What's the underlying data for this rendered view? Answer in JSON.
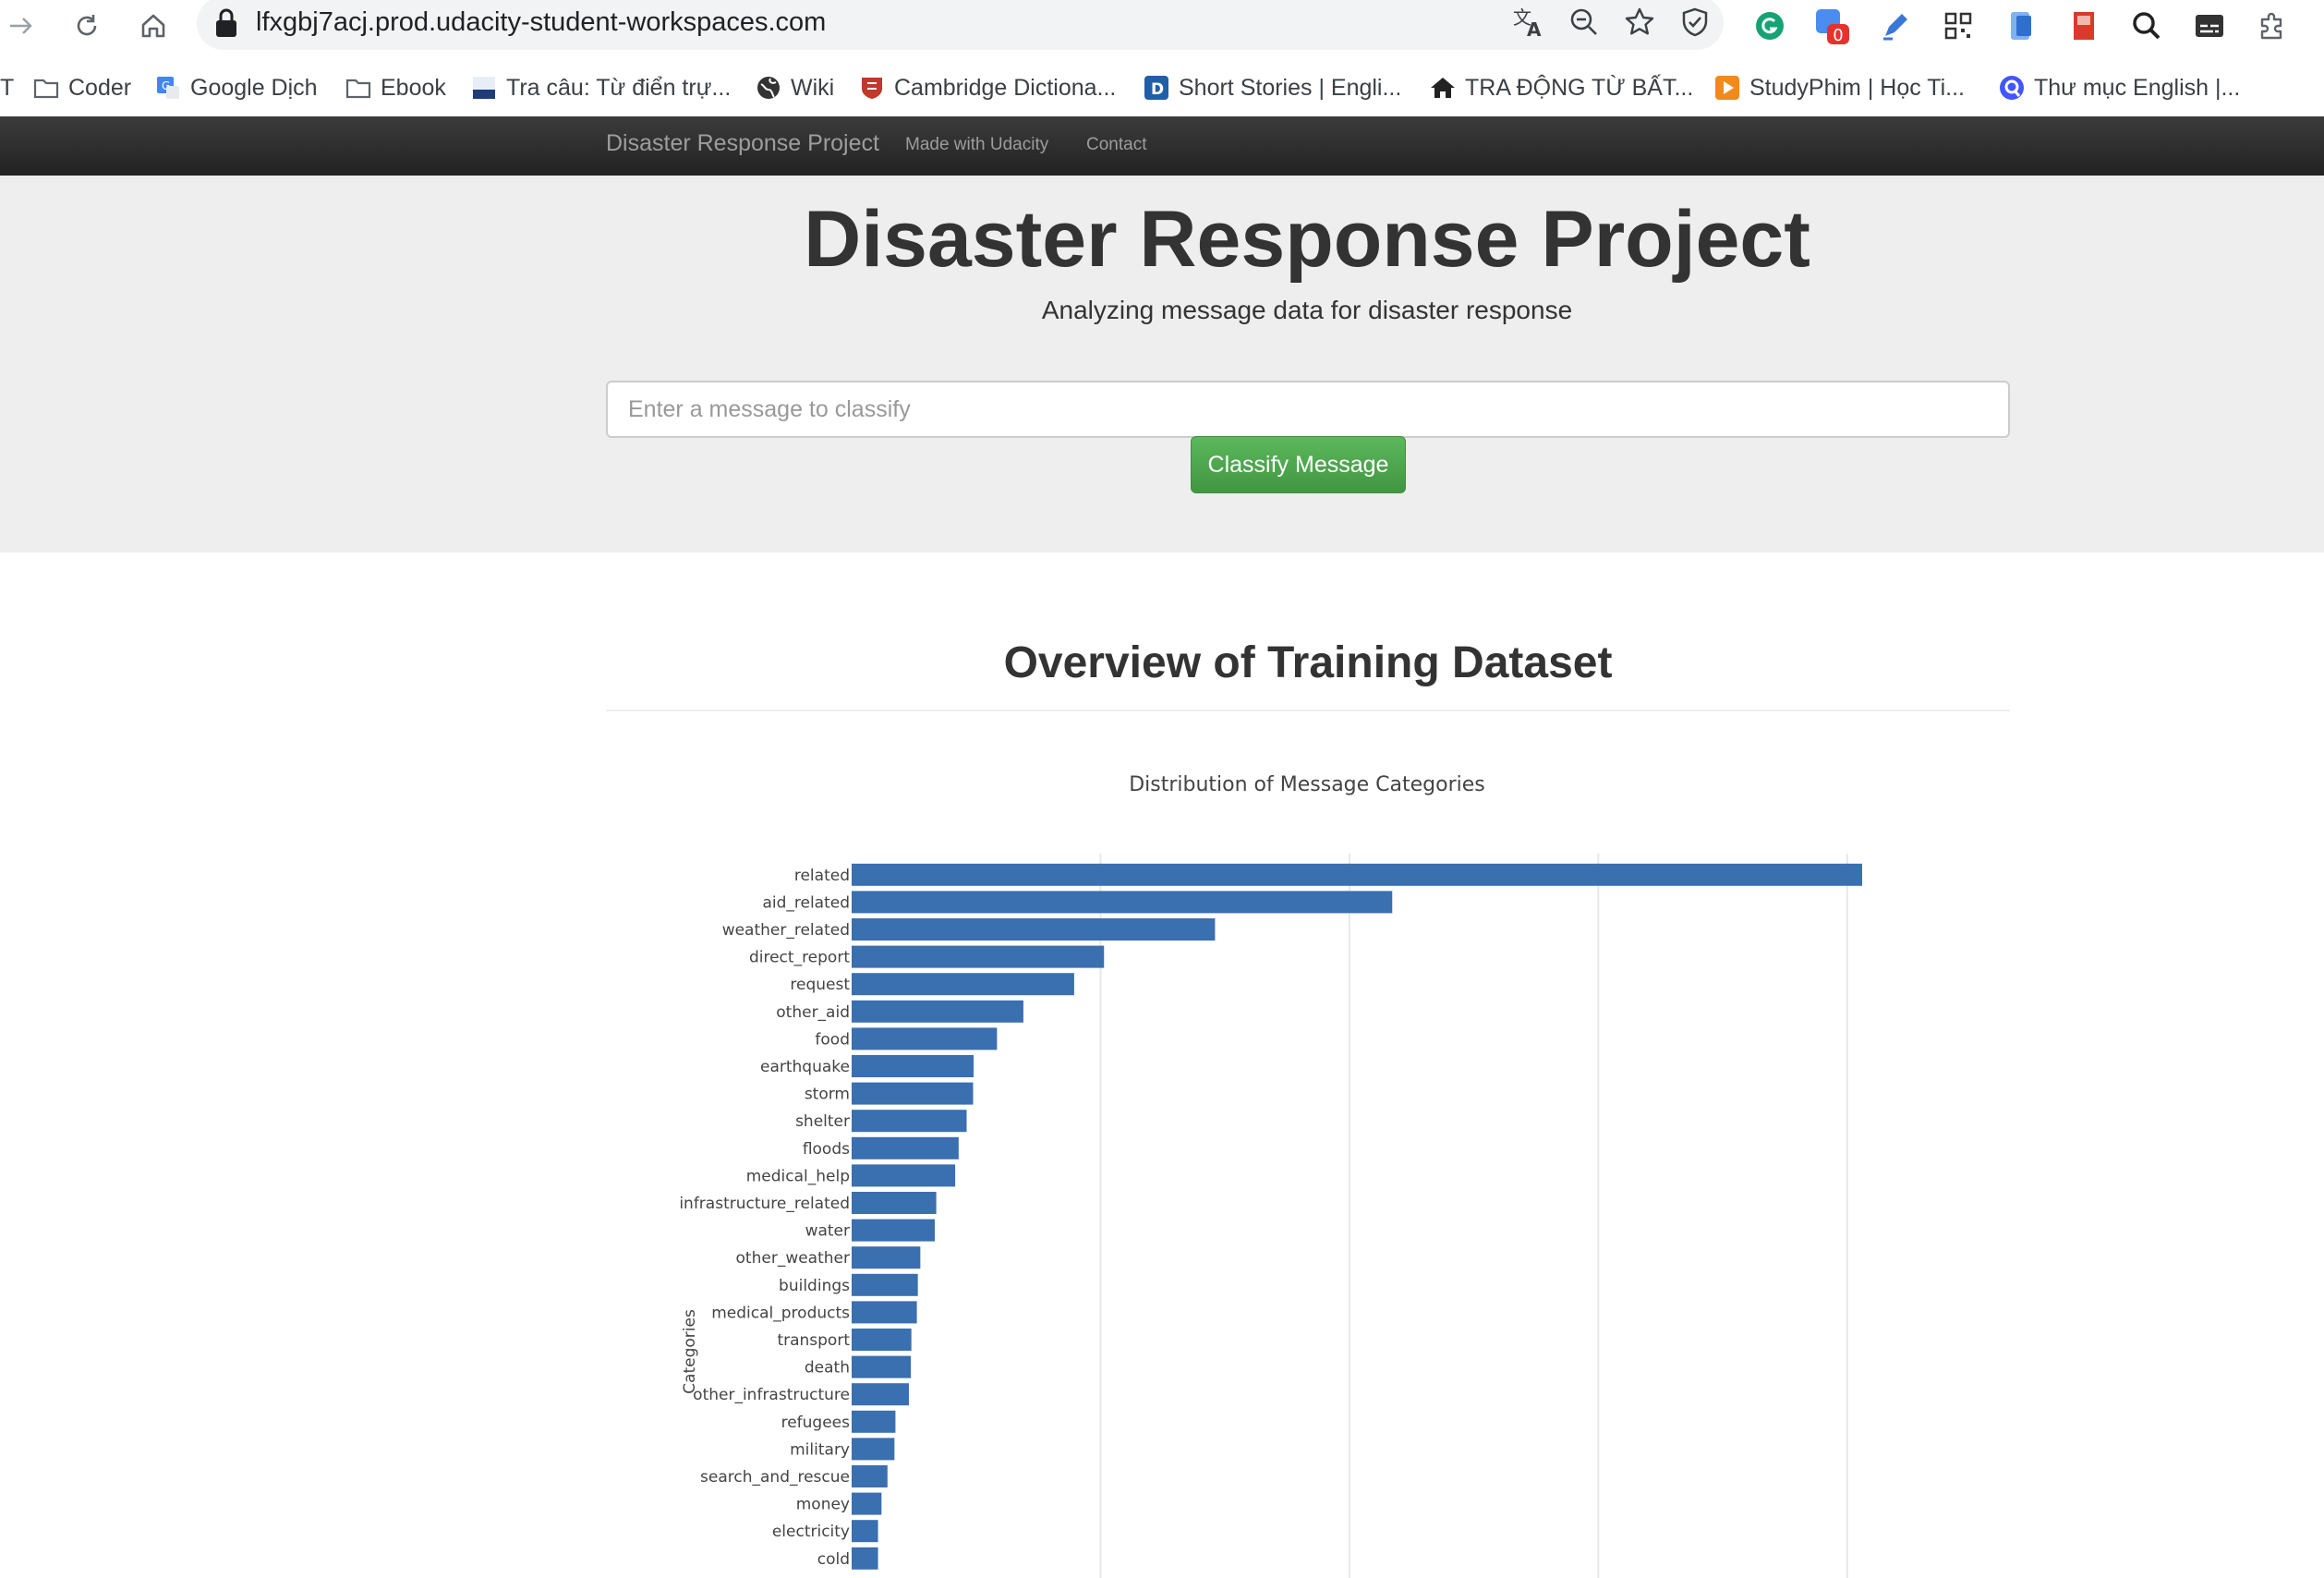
{
  "browser": {
    "url": "lfxgbj7acj.prod.udacity-student-workspaces.com",
    "extension_badge": "0",
    "icons": [
      "back-arrow-icon",
      "reload-icon",
      "home-icon",
      "lock-icon",
      "translate-icon",
      "zoom-out-icon",
      "star-icon",
      "shield-icon",
      "grammarly-icon",
      "extension-badge-icon",
      "highlighter-icon",
      "qr-code-icon",
      "device-icon",
      "book-icon",
      "search-icon",
      "caption-icon",
      "puzzle-icon"
    ]
  },
  "bookmarks": [
    {
      "label": "T",
      "icon": "truncated"
    },
    {
      "label": "Coder",
      "icon": "folder-icon"
    },
    {
      "label": "Google Dịch",
      "icon": "google-translate-icon"
    },
    {
      "label": "Ebook",
      "icon": "folder-icon"
    },
    {
      "label": "Tra câu: Từ điển trự...",
      "icon": "dictionary-icon"
    },
    {
      "label": "Wiki",
      "icon": "globe-icon"
    },
    {
      "label": "Cambridge Dictiona...",
      "icon": "cambridge-icon"
    },
    {
      "label": "Short Stories | Engli...",
      "icon": "d-logo-icon"
    },
    {
      "label": "TRA ĐỘNG TỪ BẤT...",
      "icon": "house-icon"
    },
    {
      "label": "StudyPhim | Học Ti...",
      "icon": "play-icon"
    },
    {
      "label": "Thư mục English |...",
      "icon": "quizlet-icon"
    }
  ],
  "navbar": {
    "brand": "Disaster Response Project",
    "links": [
      "Made with Udacity",
      "Contact"
    ]
  },
  "jumbotron": {
    "title": "Disaster Response Project",
    "subtitle": "Analyzing message data for disaster response",
    "input_placeholder": "Enter a message to classify",
    "button_label": "Classify Message"
  },
  "overview_title": "Overview of Training Dataset",
  "colors": {
    "bar": "#3a6fb0",
    "navbar": "#222222",
    "button": "#5cb85c"
  },
  "chart_data": {
    "type": "bar",
    "orientation": "horizontal",
    "title": "Distribution of Message Categories",
    "ylabel": "Categories",
    "xlabel": "",
    "grid": true,
    "categories": [
      "related",
      "aid_related",
      "weather_related",
      "direct_report",
      "request",
      "other_aid",
      "food",
      "earthquake",
      "storm",
      "shelter",
      "floods",
      "medical_help",
      "infrastructure_related",
      "water",
      "other_weather",
      "buildings",
      "medical_products",
      "transport",
      "death",
      "other_infrastructure",
      "refugees",
      "military",
      "search_and_rescue",
      "money",
      "electricity",
      "cold"
    ],
    "values": [
      20300,
      10860,
      7300,
      5070,
      4470,
      3450,
      2920,
      2450,
      2440,
      2310,
      2150,
      2080,
      1700,
      1670,
      1380,
      1330,
      1310,
      1200,
      1190,
      1150,
      880,
      860,
      720,
      600,
      530,
      530
    ],
    "xlim": [
      0,
      21000
    ],
    "grid_x": [
      5000,
      10000,
      15000,
      20000
    ]
  }
}
